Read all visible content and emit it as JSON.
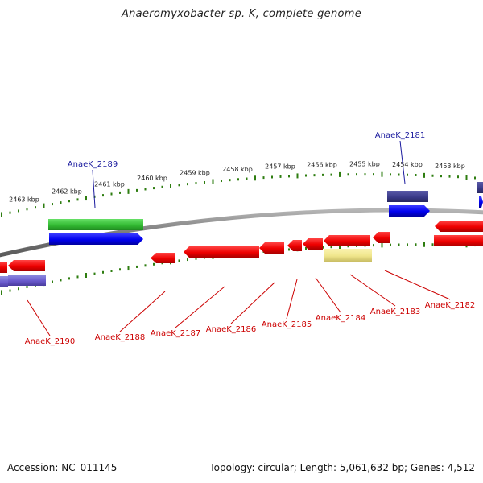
{
  "header": {
    "title": "Anaeromyxobacter sp. K, complete genome"
  },
  "footer": {
    "accession": "Accession: NC_011145",
    "summary": "Topology: circular; Length: 5,061,632 bp; Genes: 4,512"
  },
  "colors": {
    "backbone": "#808080",
    "tick": "#2e7d10",
    "forward_gene": "#ff0000",
    "reverse_gene": "#ff0000",
    "blue_feature": "#0000ee",
    "green_feature": "#33cc33",
    "navy_feature": "#3b3b8a",
    "purple_feature": "#6a5acd",
    "pale_feature": "#f0e68c",
    "label_red": "#cc0000",
    "label_blue": "#1a1a9e"
  },
  "kbp_labels": [
    "2463 kbp",
    "2462 kbp",
    "2461 kbp",
    "2460 kbp",
    "2459 kbp",
    "2458 kbp",
    "2457 kbp",
    "2456 kbp",
    "2455 kbp",
    "2454 kbp",
    "2453 kbp"
  ],
  "gene_labels_top": [
    "AnaeK_2189",
    "AnaeK_2181"
  ],
  "gene_labels_bottom": [
    "AnaeK_2190",
    "AnaeK_2188",
    "AnaeK_2187",
    "AnaeK_2186",
    "AnaeK_2185",
    "AnaeK_2184",
    "AnaeK_2183",
    "AnaeK_2182"
  ]
}
